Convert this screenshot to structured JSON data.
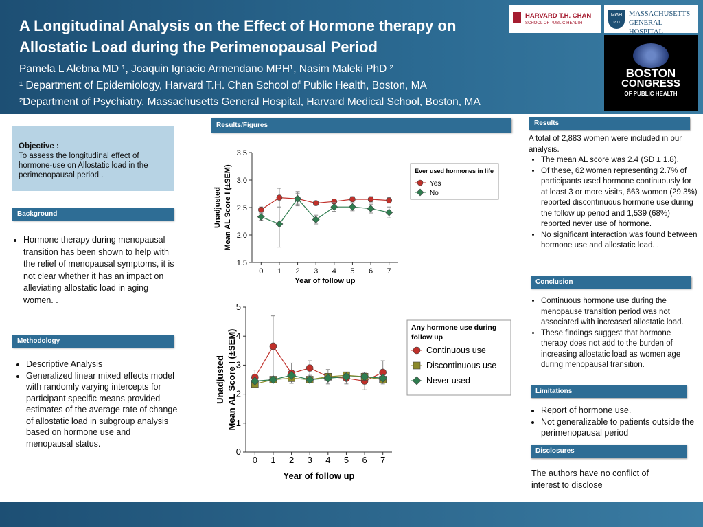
{
  "header": {
    "title": "A Longitudinal Analysis on the Effect of Hormone therapy on Allostatic Load during the Perimenopausal Period",
    "authors": "Pamela L Alebna MD ¹, Joaquin Ignacio Armendano MPH¹, Nasim Maleki PhD ²",
    "affiliations": [
      "¹ Department of Epidemiology, Harvard T.H. Chan School of Public Health, Boston, MA",
      "²Department of Psychiatry, Massachusetts General Hospital, Harvard Medical School, Boston, MA"
    ]
  },
  "logos": {
    "harvard": [
      "HARVARD T.H. CHAN",
      "SCHOOL OF PUBLIC HEALTH"
    ],
    "mgh": [
      "MGH",
      "1811",
      "MASSACHUSETTS",
      "GENERAL HOSPITAL"
    ],
    "congress": [
      "BOSTON",
      "CONGRESS",
      "OF PUBLIC HEALTH"
    ]
  },
  "objective": {
    "heading": "Objective :",
    "text": "To  assess the longitudinal effect of hormone-use on Allostatic load  in the perimenopausal period ."
  },
  "background": {
    "heading": "Background",
    "bullets": [
      "Hormone therapy during menopausal transition has been shown to help with the relief of menopausal symptoms, it is not clear whether it has an impact on alleviating allostatic load in aging women. ."
    ]
  },
  "methodology": {
    "heading": "Methodology",
    "bullets": [
      "Descriptive Analysis",
      "Generalized linear mixed effects model with randomly varying intercepts for participant specific means provided estimates of the average rate of change of allostatic load in subgroup analysis based on hormone use and menopausal status."
    ]
  },
  "figures_heading": "Results/Figures",
  "results": {
    "heading": "Results",
    "intro": "A total of 2,883 women were included in our analysis.",
    "bullets": [
      "The mean AL score was 2.4 (SD ± 1.8).",
      "Of these, 62 women representing 2.7% of participants used hormone continuously for at least 3 or more visits, 663 women (29.3%) reported discontinuous hormone use during the follow up period and 1,539 (68%) reported never use of hormone.",
      " No significant interaction was found between hormone use and allostatic load. ."
    ]
  },
  "conclusion": {
    "heading": "Conclusion",
    "bullets": [
      "Continuous hormone use during the menopause transition period was not associated with increased allostatic load.",
      " These findings suggest that hormone therapy does not add to the burden of increasing allostatic load as women age during menopausal transition."
    ]
  },
  "limitations": {
    "heading": "Limitations",
    "bullets": [
      "Report of hormone use.",
      "Not generalizable to patients outside the perimenopausal period"
    ]
  },
  "disclosures": {
    "heading": "Disclosures",
    "text": "The authors  have no conflict of interest to disclose"
  },
  "chart_data": [
    {
      "type": "line",
      "xlabel": "Year of follow up",
      "ylabel": [
        "Unadjusted",
        "Mean AL Score I (±SEM)"
      ],
      "x": [
        0,
        1,
        2,
        3,
        4,
        5,
        6,
        7
      ],
      "xlim": [
        -0.5,
        7.5
      ],
      "xticks": [
        0,
        1,
        2,
        3,
        4,
        5,
        6,
        7
      ],
      "ylim": [
        1.5,
        3.5
      ],
      "yticks": [
        1.5,
        {
          "value": 2,
          "label": "2.0"
        },
        2.5,
        {
          "value": 3,
          "label": "3.0"
        },
        3.5
      ],
      "legend_title": "Ever used hormones in life",
      "legend": "upper right",
      "series": [
        {
          "name": "Yes",
          "color": "#c0302a",
          "marker": "circle",
          "values": [
            2.46,
            2.68,
            2.66,
            2.58,
            2.61,
            2.65,
            2.65,
            2.63
          ],
          "errors": [
            0.05,
            0.17,
            0.1,
            0.04,
            0.04,
            0.05,
            0.05,
            0.05
          ]
        },
        {
          "name": "No",
          "color": "#2e7d4f",
          "marker": "diamond",
          "values": [
            2.33,
            2.2,
            2.66,
            2.28,
            2.51,
            2.51,
            2.48,
            2.41
          ],
          "errors": [
            0.06,
            0.42,
            0.13,
            0.08,
            0.08,
            0.07,
            0.08,
            0.1
          ]
        }
      ]
    },
    {
      "type": "line",
      "xlabel": "Year of follow up",
      "ylabel": [
        "Unadjusted",
        "Mean AL Score I (±SEM)"
      ],
      "x": [
        0,
        1,
        2,
        3,
        4,
        5,
        6,
        7
      ],
      "xlim": [
        -0.5,
        7.5
      ],
      "xticks": [
        0,
        1,
        2,
        3,
        4,
        5,
        6,
        7
      ],
      "ylim": [
        0,
        5
      ],
      "yticks": [
        0,
        1,
        2,
        3,
        4,
        5
      ],
      "legend_title": "Any hormone use during follow up",
      "legend": "right",
      "series": [
        {
          "name": "Continuous use",
          "color": "#c0302a",
          "marker": "circle",
          "values": [
            2.58,
            3.65,
            2.72,
            2.9,
            2.6,
            2.55,
            2.45,
            2.75
          ],
          "errors": [
            0.25,
            1.05,
            0.35,
            0.25,
            0.25,
            0.2,
            0.3,
            0.4
          ]
        },
        {
          "name": "Discontinuous use",
          "color": "#8c8a2a",
          "marker": "square",
          "values": [
            2.35,
            2.5,
            2.55,
            2.5,
            2.6,
            2.65,
            2.6,
            2.5
          ],
          "errors": [
            0.1,
            0.1,
            0.1,
            0.08,
            0.1,
            0.1,
            0.1,
            0.1
          ]
        },
        {
          "name": "Never used",
          "color": "#2e7d4f",
          "marker": "diamond",
          "values": [
            2.45,
            2.5,
            2.65,
            2.5,
            2.55,
            2.6,
            2.6,
            2.55
          ],
          "errors": [
            0.05,
            0.05,
            0.05,
            0.05,
            0.05,
            0.05,
            0.05,
            0.05
          ]
        }
      ]
    }
  ]
}
